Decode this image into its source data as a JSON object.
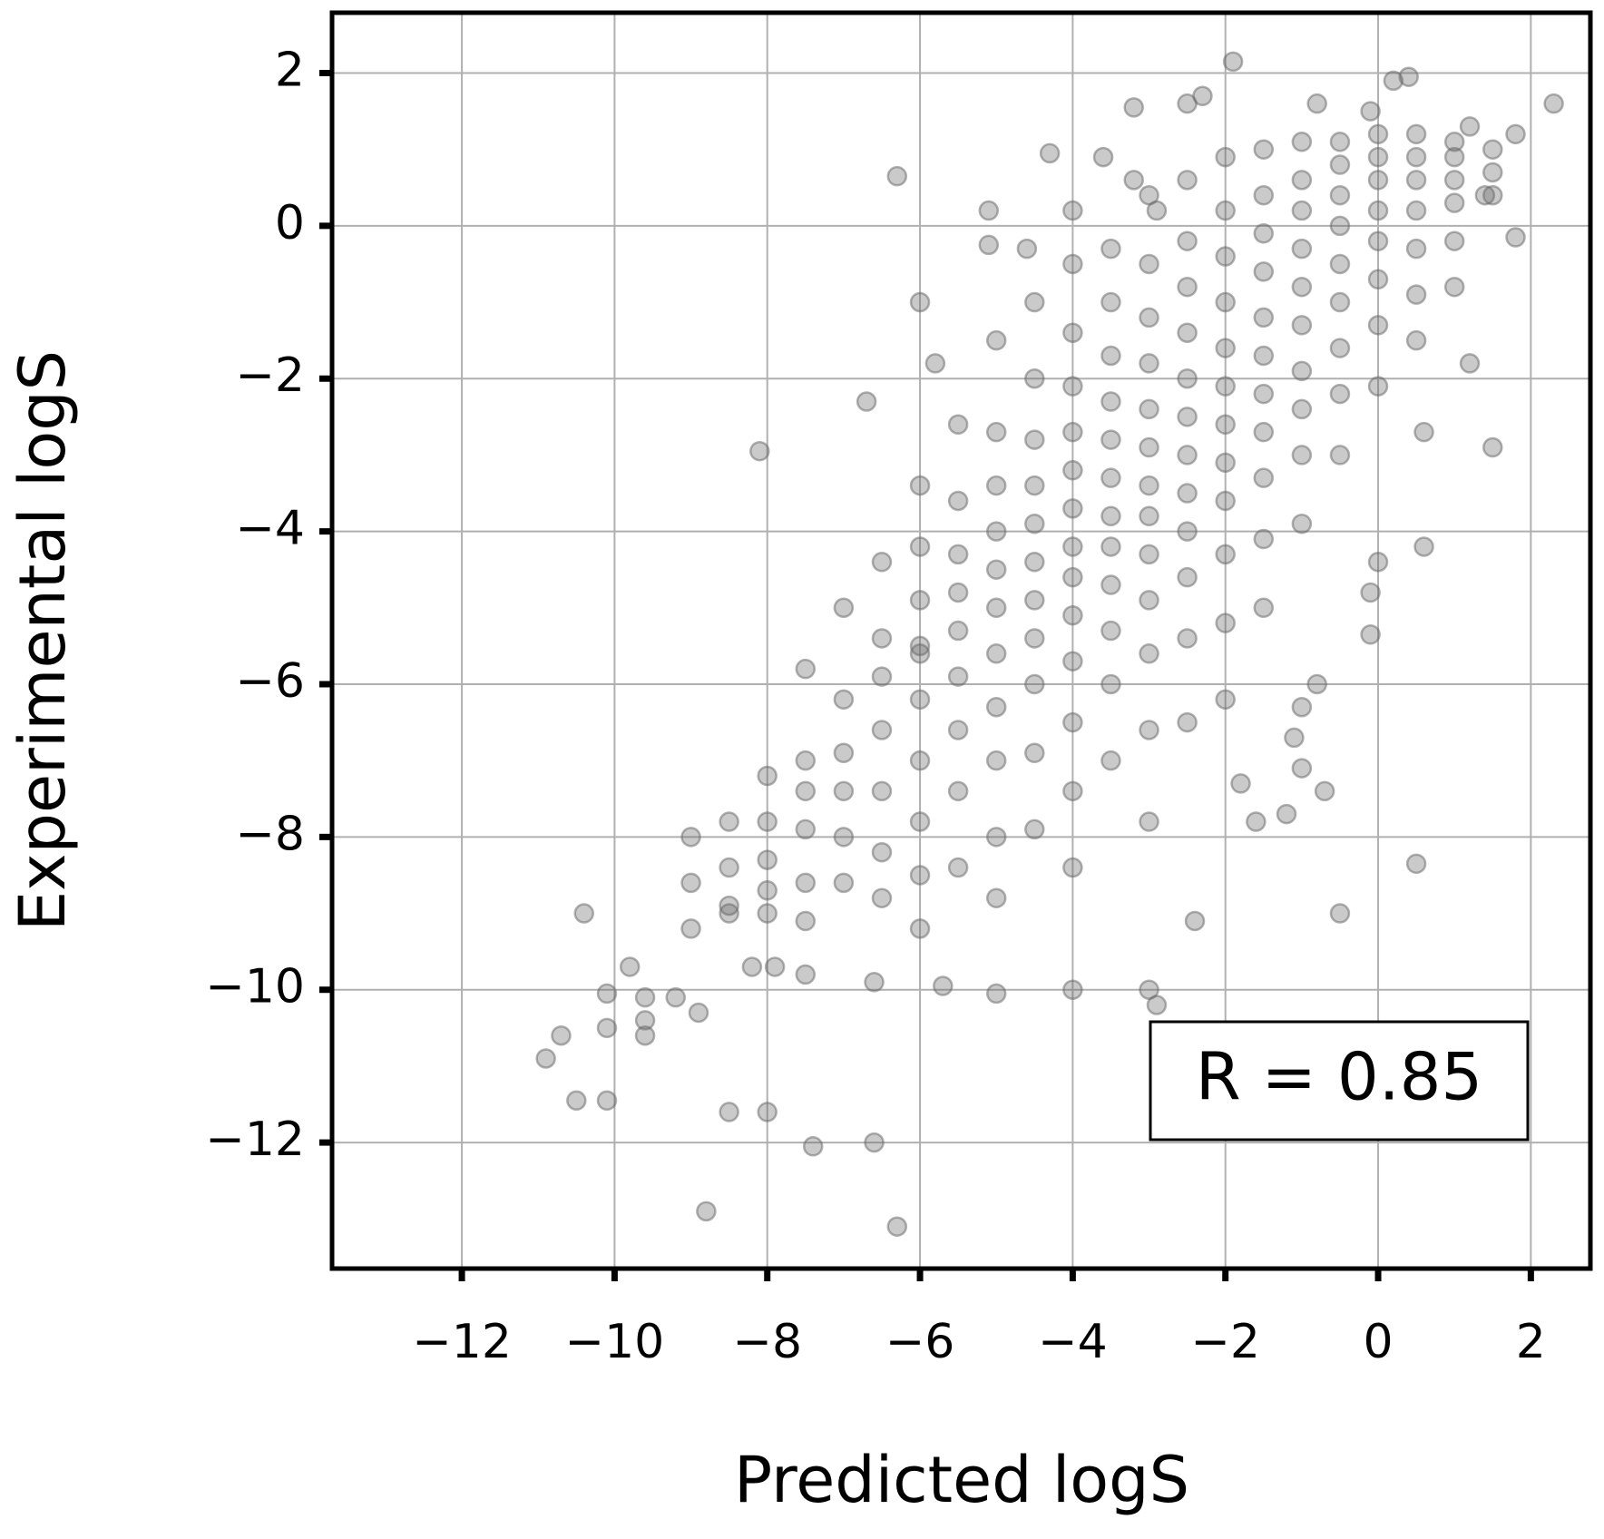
{
  "chart_data": {
    "type": "scatter",
    "x_label": "Predicted logS",
    "y_label": "Experimental logS",
    "annotation": "R = 0.85",
    "color": "#666666",
    "grid": true,
    "xlim": [
      -13.7,
      2.78
    ],
    "ylim": [
      -13.65,
      2.79
    ],
    "xticks": [
      {
        "value": -12,
        "label": "−12"
      },
      {
        "value": -10,
        "label": "−10"
      },
      {
        "value": -8,
        "label": "−8"
      },
      {
        "value": -6,
        "label": "−6"
      },
      {
        "value": -4,
        "label": "−4"
      },
      {
        "value": -2,
        "label": "−2"
      },
      0,
      2
    ],
    "yticks": [
      {
        "value": -12,
        "label": "−12"
      },
      {
        "value": -10,
        "label": "−10"
      },
      {
        "value": -8,
        "label": "−8"
      },
      {
        "value": -6,
        "label": "−6"
      },
      {
        "value": -4,
        "label": "−4"
      },
      {
        "value": -2,
        "label": "−2"
      },
      0,
      2
    ],
    "x": [
      -10.9,
      -10.7,
      -10.5,
      -10.1,
      -10.1,
      -10.1,
      -10.4,
      -9.8,
      -9.6,
      -9.6,
      -9.6,
      -9.2,
      -8.9,
      -8.8,
      -8.5,
      -8.0,
      -7.4,
      -6.6,
      -6.3,
      -7.9,
      -8.1,
      -6.7,
      -6.3,
      -5.1,
      -5.1,
      -4.3,
      -3.2,
      -1.9,
      -2.3,
      -2.5,
      2.3,
      1.8,
      1.8,
      1.5,
      1.2,
      0.5,
      -0.5,
      -0.1,
      0.0,
      -0.1,
      -1.8,
      -1.6,
      -1.2,
      -1.0,
      -2.4,
      -2.9,
      -3.0,
      -4.0,
      -5.0,
      -5.7,
      -6.6,
      -6.0,
      -7.5,
      -8.2,
      -0.7,
      0.6,
      0.6,
      -1.1,
      -1.0,
      -0.8,
      -5.8,
      -6.0,
      -4.6,
      -4.0,
      -3.6,
      -3.2,
      -2.9,
      0.2,
      0.4,
      -0.1,
      -0.8,
      1.2,
      1.4,
      -9,
      -9,
      -9,
      -8.5,
      -8.5,
      -8.5,
      -8.5,
      -8,
      -8,
      -8,
      -8,
      -8,
      -7.5,
      -7.5,
      -7.5,
      -7.5,
      -7.5,
      -7.5,
      -7,
      -7,
      -7,
      -7,
      -7,
      -7,
      -6.5,
      -6.5,
      -6.5,
      -6.5,
      -6.5,
      -6.5,
      -6.5,
      -6,
      -6,
      -6,
      -6,
      -6,
      -6,
      -6,
      -6,
      -6,
      -5.5,
      -5.5,
      -5.5,
      -5.5,
      -5.5,
      -5.5,
      -5.5,
      -5.5,
      -5.5,
      -5,
      -5,
      -5,
      -5,
      -5,
      -5,
      -5,
      -5,
      -5,
      -5,
      -5,
      -4.5,
      -4.5,
      -4.5,
      -4.5,
      -4.5,
      -4.5,
      -4.5,
      -4.5,
      -4.5,
      -4.5,
      -4.5,
      -4,
      -4,
      -4,
      -4,
      -4,
      -4,
      -4,
      -4,
      -4,
      -4,
      -4,
      -4,
      -4,
      -3.5,
      -3.5,
      -3.5,
      -3.5,
      -3.5,
      -3.5,
      -3.5,
      -3.5,
      -3.5,
      -3.5,
      -3.5,
      -3.5,
      -3,
      -3,
      -3,
      -3,
      -3,
      -3,
      -3,
      -3,
      -3,
      -3,
      -3,
      -3,
      -3,
      -2.5,
      -2.5,
      -2.5,
      -2.5,
      -2.5,
      -2.5,
      -2.5,
      -2.5,
      -2.5,
      -2.5,
      -2.5,
      -2.5,
      -2,
      -2,
      -2,
      -2,
      -2,
      -2,
      -2,
      -2,
      -2,
      -2,
      -2,
      -2,
      -1.5,
      -1.5,
      -1.5,
      -1.5,
      -1.5,
      -1.5,
      -1.5,
      -1.5,
      -1.5,
      -1.5,
      -1.5,
      -1,
      -1,
      -1,
      -1,
      -1,
      -1,
      -1,
      -1,
      -1,
      -1,
      -0.5,
      -0.5,
      -0.5,
      -0.5,
      -0.5,
      -0.5,
      -0.5,
      -0.5,
      -0.5,
      0,
      0,
      0,
      0,
      0,
      0,
      0,
      0,
      0.5,
      0.5,
      0.5,
      0.5,
      0.5,
      0.5,
      0.5,
      1,
      1,
      1,
      1,
      1,
      1,
      1.5,
      1.5,
      1.5
    ],
    "values": [
      -10.9,
      -10.6,
      -11.45,
      -11.45,
      -10.5,
      -10.05,
      -9.0,
      -9.7,
      -10.1,
      -10.4,
      -10.6,
      -10.1,
      -10.3,
      -12.9,
      -11.6,
      -11.6,
      -12.05,
      -12.0,
      -13.1,
      -9.7,
      -2.95,
      -2.3,
      0.65,
      0.2,
      -0.25,
      0.95,
      1.55,
      2.15,
      1.7,
      1.6,
      1.6,
      1.2,
      -0.15,
      -2.9,
      -1.8,
      -8.35,
      -9.0,
      -5.35,
      -4.4,
      -4.8,
      -7.3,
      -7.8,
      -7.7,
      -7.1,
      -9.1,
      -10.2,
      -10.0,
      -10.0,
      -10.05,
      -9.95,
      -9.9,
      -5.5,
      -9.8,
      -9.7,
      -7.4,
      -4.2,
      -2.7,
      -6.7,
      -6.3,
      -6.0,
      -1.8,
      -1.0,
      -0.3,
      0.2,
      0.9,
      0.6,
      0.2,
      1.9,
      1.95,
      1.5,
      1.6,
      1.3,
      0.4,
      -8.0,
      -8.6,
      -9.2,
      -7.8,
      -8.4,
      -9.0,
      -8.9,
      -7.2,
      -7.8,
      -8.3,
      -8.7,
      -9.0,
      -5.8,
      -7.0,
      -7.4,
      -7.9,
      -8.6,
      -9.1,
      -5.0,
      -6.2,
      -6.9,
      -7.4,
      -8.0,
      -8.6,
      -4.4,
      -5.4,
      -5.9,
      -6.6,
      -7.4,
      -8.2,
      -8.8,
      -3.4,
      -4.2,
      -4.9,
      -5.6,
      -6.2,
      -7.0,
      -7.8,
      -8.5,
      -9.2,
      -2.6,
      -3.6,
      -4.3,
      -4.8,
      -5.3,
      -5.9,
      -6.6,
      -7.4,
      -8.4,
      -1.5,
      -2.7,
      -3.4,
      -4.0,
      -4.5,
      -5.0,
      -5.6,
      -6.3,
      -7.0,
      -8.0,
      -8.8,
      -1.0,
      -2.0,
      -2.8,
      -3.4,
      -3.9,
      -4.4,
      -4.9,
      -5.4,
      -6.0,
      -6.9,
      -7.9,
      -0.5,
      -1.4,
      -2.1,
      -2.7,
      -3.2,
      -3.7,
      -4.2,
      -4.6,
      -5.1,
      -5.7,
      -6.5,
      -7.4,
      -8.4,
      -0.3,
      -1.0,
      -1.7,
      -2.3,
      -2.8,
      -3.3,
      -3.8,
      -4.2,
      -4.7,
      -5.3,
      -6.0,
      -7.0,
      0.4,
      -0.5,
      -1.2,
      -1.8,
      -2.4,
      -2.9,
      -3.4,
      -3.8,
      -4.3,
      -4.9,
      -5.6,
      -6.6,
      -7.8,
      0.6,
      -0.2,
      -0.8,
      -1.4,
      -2.0,
      -2.5,
      -3.0,
      -3.5,
      -4.0,
      -4.6,
      -5.4,
      -6.5,
      0.9,
      0.2,
      -0.4,
      -1.0,
      -1.6,
      -2.1,
      -2.6,
      -3.1,
      -3.6,
      -4.3,
      -5.2,
      -6.2,
      1.0,
      0.4,
      -0.1,
      -0.6,
      -1.2,
      -1.7,
      -2.2,
      -2.7,
      -3.3,
      -4.1,
      -5.0,
      1.1,
      0.6,
      0.2,
      -0.3,
      -0.8,
      -1.3,
      -1.9,
      -2.4,
      -3.0,
      -3.9,
      1.1,
      0.8,
      0.4,
      0.0,
      -0.5,
      -1.0,
      -1.6,
      -2.2,
      -3.0,
      1.2,
      0.9,
      0.6,
      0.2,
      -0.2,
      -0.7,
      -1.3,
      -2.1,
      1.2,
      0.9,
      0.6,
      0.2,
      -0.3,
      -0.9,
      -1.5,
      1.1,
      0.9,
      0.6,
      0.3,
      -0.2,
      -0.8,
      1.0,
      0.7,
      0.4
    ]
  }
}
